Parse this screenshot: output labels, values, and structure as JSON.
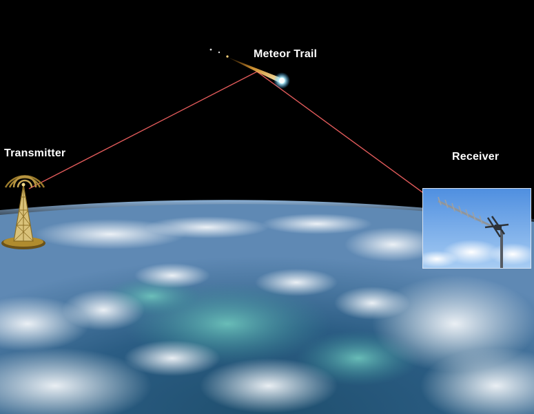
{
  "labels": {
    "meteor": "Meteor Trail",
    "transmitter": "Transmitter",
    "receiver": "Receiver"
  },
  "colors": {
    "space": "#000000",
    "signal_path": "#e05a5a",
    "label_text": "#ffffff",
    "ocean": "#2e5f86",
    "clouds": "#e9eef3",
    "sky": "#7aaee8"
  },
  "icons": {
    "transmitter": "radio-tower-icon",
    "meteor": "meteor-icon",
    "receiver": "yagi-antenna-icon"
  }
}
